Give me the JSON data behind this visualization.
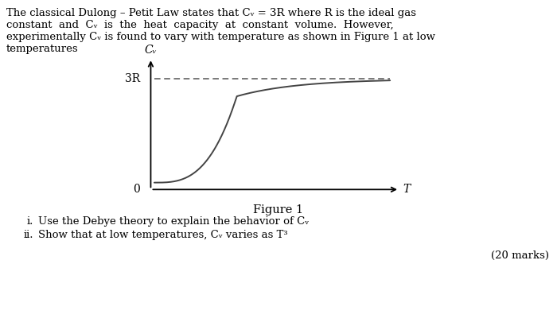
{
  "paragraph_text": "The classical Dulong – Petit Law states that Cᵥ = 3R where R is the ideal gas\nconstant  and  Cᵥ  is  the  heat  capacity  at  constant  volume.  However,\nexperimentally Cᵥ is found to vary with temperature as shown in Figure 1 at low\ntemperatures",
  "ylabel": "Cᵥ",
  "xlabel": "T",
  "label_3R": "3R",
  "label_0": "0",
  "figure_caption": "Figure 1",
  "item_i_label": "i.",
  "item_ii_label": "ii.",
  "item_i_text": "Use the Debye theory to explain the behavior of Cᵥ",
  "item_ii_text": "Show that at low temperatures, Cᵥ varies as T³",
  "marks": "(20 marks)",
  "bg_color": "#ffffff",
  "curve_color": "#444444",
  "dashed_color": "#555555",
  "axis_color": "#000000",
  "text_color": "#000000",
  "font_size_body": 9.5,
  "font_size_axis_label": 10,
  "font_size_caption": 10.5
}
